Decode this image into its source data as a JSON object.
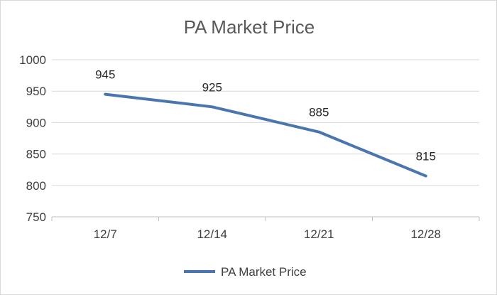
{
  "chart_data": {
    "type": "line",
    "title": "PA Market Price",
    "categories": [
      "12/7",
      "12/14",
      "12/21",
      "12/28"
    ],
    "series": [
      {
        "name": "PA Market Price",
        "values": [
          945,
          925,
          885,
          815
        ],
        "color": "#4a76b0"
      }
    ],
    "data_labels": [
      "945",
      "925",
      "885",
      "815"
    ],
    "ylim": [
      750,
      1000
    ],
    "yticks": [
      750,
      800,
      850,
      900,
      950,
      1000
    ],
    "ytick_labels": [
      "750",
      "800",
      "850",
      "900",
      "950",
      "1000"
    ],
    "grid": true,
    "legend_position": "bottom",
    "colors": {
      "gridline": "#d9d9d9",
      "axis": "#bfbfbf",
      "text": "#404040"
    }
  }
}
